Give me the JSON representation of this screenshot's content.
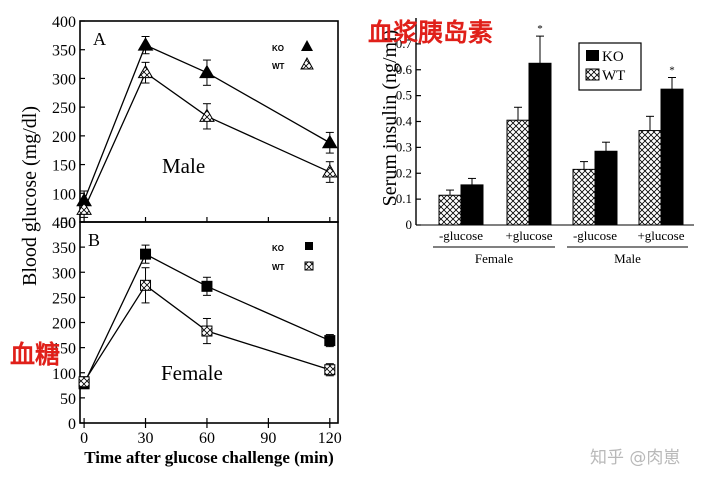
{
  "annotations": {
    "glucose": "血糖",
    "insulin": "血浆胰岛素"
  },
  "watermark": "知乎 @肉崽",
  "chart_data": [
    {
      "id": "A",
      "type": "line",
      "panel_label": "A",
      "sex_label": "Male",
      "ylabel": "Blood glucose (mg/dl)",
      "ylim": [
        50,
        400
      ],
      "yticks": [
        "50",
        "100",
        "150",
        "200",
        "250",
        "300",
        "350",
        "400"
      ],
      "xlim": [
        -2,
        124
      ],
      "xticks": [
        0,
        30,
        60,
        90,
        120
      ],
      "legend_position": "top-right",
      "series": [
        {
          "name": "KO",
          "marker": "triangle",
          "fill": "solid",
          "x": [
            0,
            30,
            60,
            120
          ],
          "y": [
            87,
            358,
            310,
            188
          ],
          "err": [
            17,
            15,
            22,
            18
          ]
        },
        {
          "name": "WT",
          "marker": "triangle",
          "fill": "hatched",
          "x": [
            0,
            30,
            60,
            120
          ],
          "y": [
            72,
            310,
            234,
            137
          ],
          "err": [
            14,
            18,
            22,
            18
          ]
        }
      ]
    },
    {
      "id": "B",
      "type": "line",
      "panel_label": "B",
      "sex_label": "Female",
      "ylabel": "Blood glucose (mg/dl)",
      "ylim": [
        0,
        400
      ],
      "yticks": [
        "0",
        "50",
        "100",
        "150",
        "200",
        "250",
        "300",
        "350",
        "400"
      ],
      "xlim": [
        -2,
        124
      ],
      "xticks": [
        0,
        30,
        60,
        90,
        120
      ],
      "xlabel": "Time after glucose challenge (min)",
      "legend_position": "top-right",
      "series": [
        {
          "name": "KO",
          "marker": "square",
          "fill": "solid",
          "x": [
            0,
            30,
            60,
            120
          ],
          "y": [
            78,
            336,
            272,
            164
          ],
          "err": [
            8,
            18,
            18,
            12
          ]
        },
        {
          "name": "WT",
          "marker": "square",
          "fill": "hatched",
          "x": [
            0,
            30,
            60,
            120
          ],
          "y": [
            82,
            274,
            183,
            106
          ],
          "err": [
            10,
            35,
            25,
            12
          ]
        }
      ]
    },
    {
      "id": "C",
      "type": "bar",
      "ylabel": "Serum insulin (ng/ml)",
      "ylim": [
        0,
        0.8
      ],
      "yticks": [
        "0",
        "0.1",
        "0.2",
        "0.3",
        "0.4",
        "0.5",
        "0.6",
        "0.7"
      ],
      "categories": [
        "-glucose",
        "+glucose",
        "-glucose",
        "+glucose"
      ],
      "groups": [
        "Female",
        "Male"
      ],
      "legend_position": "top-right",
      "series": [
        {
          "name": "KO",
          "fill": "solid",
          "values": [
            0.155,
            0.625,
            0.285,
            0.525
          ],
          "err": [
            0.025,
            0.105,
            0.035,
            0.045
          ]
        },
        {
          "name": "WT",
          "fill": "hatched",
          "values": [
            0.115,
            0.405,
            0.215,
            0.365
          ],
          "err": [
            0.02,
            0.05,
            0.03,
            0.055
          ]
        }
      ],
      "significance": [
        "",
        "*",
        "",
        "*"
      ]
    }
  ]
}
